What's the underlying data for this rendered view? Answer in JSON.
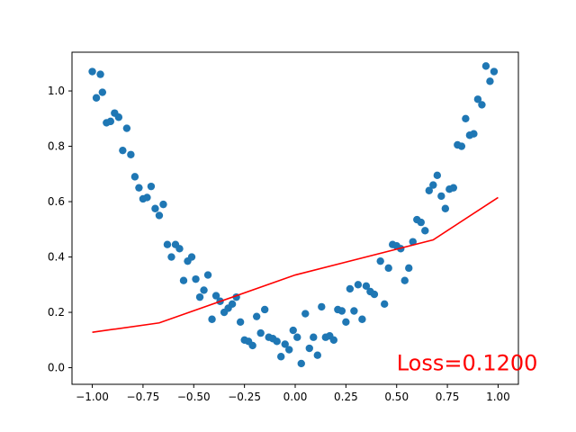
{
  "chart_data": {
    "type": "scatter",
    "title": "",
    "xlabel": "",
    "ylabel": "",
    "xlim": [
      -1.1,
      1.1
    ],
    "ylim": [
      -0.06,
      1.14
    ],
    "xticks": [
      "−1.00",
      "−0.75",
      "−0.50",
      "−0.25",
      "0.00",
      "0.25",
      "0.50",
      "0.75",
      "1.00"
    ],
    "xtick_values": [
      -1.0,
      -0.75,
      -0.5,
      -0.25,
      0.0,
      0.25,
      0.5,
      0.75,
      1.0
    ],
    "yticks": [
      "0.0",
      "0.2",
      "0.4",
      "0.6",
      "0.8",
      "1.0"
    ],
    "ytick_values": [
      0.0,
      0.2,
      0.4,
      0.6,
      0.8,
      1.0
    ],
    "grid": false,
    "scatter_color": "#1f77b4",
    "line_color": "#ff0000",
    "series": [
      {
        "type": "scatter",
        "points": [
          [
            -1.0,
            1.07
          ],
          [
            -0.98,
            0.975
          ],
          [
            -0.96,
            1.06
          ],
          [
            -0.95,
            0.995
          ],
          [
            -0.93,
            0.885
          ],
          [
            -0.91,
            0.89
          ],
          [
            -0.89,
            0.92
          ],
          [
            -0.87,
            0.905
          ],
          [
            -0.85,
            0.785
          ],
          [
            -0.83,
            0.865
          ],
          [
            -0.81,
            0.77
          ],
          [
            -0.79,
            0.69
          ],
          [
            -0.77,
            0.65
          ],
          [
            -0.75,
            0.61
          ],
          [
            -0.73,
            0.615
          ],
          [
            -0.71,
            0.655
          ],
          [
            -0.69,
            0.575
          ],
          [
            -0.67,
            0.55
          ],
          [
            -0.65,
            0.59
          ],
          [
            -0.63,
            0.445
          ],
          [
            -0.61,
            0.4
          ],
          [
            -0.59,
            0.445
          ],
          [
            -0.57,
            0.43
          ],
          [
            -0.55,
            0.315
          ],
          [
            -0.53,
            0.385
          ],
          [
            -0.51,
            0.4
          ],
          [
            -0.49,
            0.32
          ],
          [
            -0.47,
            0.255
          ],
          [
            -0.45,
            0.28
          ],
          [
            -0.43,
            0.335
          ],
          [
            -0.41,
            0.175
          ],
          [
            -0.39,
            0.26
          ],
          [
            -0.37,
            0.24
          ],
          [
            -0.35,
            0.2
          ],
          [
            -0.33,
            0.215
          ],
          [
            -0.31,
            0.23
          ],
          [
            -0.29,
            0.255
          ],
          [
            -0.27,
            0.165
          ],
          [
            -0.25,
            0.1
          ],
          [
            -0.23,
            0.095
          ],
          [
            -0.21,
            0.08
          ],
          [
            -0.19,
            0.185
          ],
          [
            -0.17,
            0.125
          ],
          [
            -0.15,
            0.21
          ],
          [
            -0.13,
            0.11
          ],
          [
            -0.11,
            0.105
          ],
          [
            -0.09,
            0.095
          ],
          [
            -0.07,
            0.04
          ],
          [
            -0.05,
            0.085
          ],
          [
            -0.03,
            0.065
          ],
          [
            -0.01,
            0.135
          ],
          [
            0.01,
            0.11
          ],
          [
            0.03,
            0.015
          ],
          [
            0.05,
            0.195
          ],
          [
            0.07,
            0.07
          ],
          [
            0.09,
            0.11
          ],
          [
            0.11,
            0.045
          ],
          [
            0.13,
            0.22
          ],
          [
            0.15,
            0.11
          ],
          [
            0.17,
            0.115
          ],
          [
            0.19,
            0.1
          ],
          [
            0.21,
            0.21
          ],
          [
            0.23,
            0.205
          ],
          [
            0.25,
            0.165
          ],
          [
            0.27,
            0.285
          ],
          [
            0.29,
            0.205
          ],
          [
            0.31,
            0.3
          ],
          [
            0.33,
            0.175
          ],
          [
            0.35,
            0.295
          ],
          [
            0.37,
            0.275
          ],
          [
            0.39,
            0.265
          ],
          [
            0.42,
            0.385
          ],
          [
            0.44,
            0.23
          ],
          [
            0.46,
            0.36
          ],
          [
            0.48,
            0.445
          ],
          [
            0.5,
            0.44
          ],
          [
            0.52,
            0.43
          ],
          [
            0.54,
            0.315
          ],
          [
            0.56,
            0.36
          ],
          [
            0.58,
            0.455
          ],
          [
            0.6,
            0.535
          ],
          [
            0.62,
            0.525
          ],
          [
            0.64,
            0.495
          ],
          [
            0.66,
            0.64
          ],
          [
            0.68,
            0.66
          ],
          [
            0.7,
            0.695
          ],
          [
            0.72,
            0.62
          ],
          [
            0.74,
            0.575
          ],
          [
            0.76,
            0.645
          ],
          [
            0.78,
            0.65
          ],
          [
            0.8,
            0.805
          ],
          [
            0.82,
            0.8
          ],
          [
            0.84,
            0.9
          ],
          [
            0.86,
            0.84
          ],
          [
            0.88,
            0.845
          ],
          [
            0.9,
            0.97
          ],
          [
            0.92,
            0.95
          ],
          [
            0.94,
            1.09
          ],
          [
            0.96,
            1.035
          ],
          [
            0.98,
            1.07
          ]
        ]
      },
      {
        "type": "line",
        "x": [
          -1.0,
          -0.67,
          0.0,
          0.68,
          1.0
        ],
        "y": [
          0.128,
          0.162,
          0.335,
          0.462,
          0.615
        ]
      }
    ],
    "annotation": {
      "text": "Loss=0.1200",
      "x": 0.5,
      "y": -0.01,
      "color": "#ff0000"
    }
  }
}
